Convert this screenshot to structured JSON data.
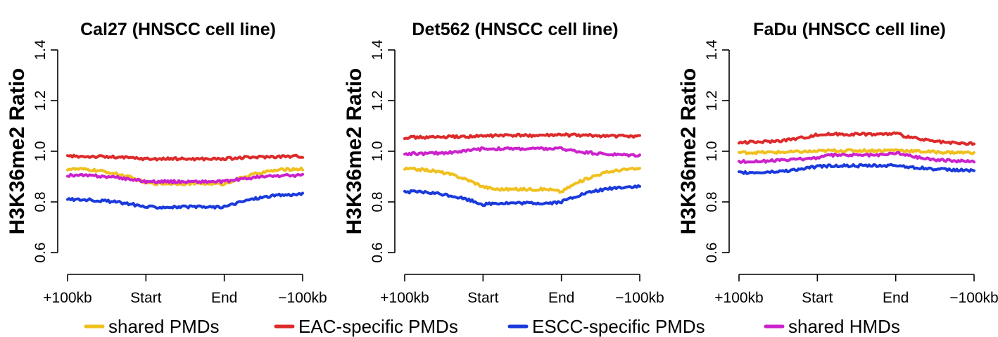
{
  "chart_data": [
    {
      "type": "line",
      "title": "Cal27 (HNSCC cell line)",
      "ylabel": "H3K36me2 Ratio",
      "ylim": [
        0.6,
        1.4
      ],
      "yticks": [
        "0.6",
        "0.8",
        "1.0",
        "1.2",
        "1.4"
      ],
      "xticks": [
        "+100kb",
        "Start",
        "End",
        "−100kb"
      ],
      "grid": false,
      "x": [
        0,
        0.33,
        0.67,
        1
      ],
      "series": [
        {
          "name": "shared PMDs",
          "color": "#f0c01e",
          "values": [
            0.93,
            0.875,
            0.87,
            0.93
          ]
        },
        {
          "name": "EAC-specific PMDs",
          "color": "#dd2a2a",
          "values": [
            0.98,
            0.97,
            0.97,
            0.98
          ]
        },
        {
          "name": "ESCC-specific PMDs",
          "color": "#1a3adb",
          "values": [
            0.81,
            0.78,
            0.78,
            0.83
          ]
        },
        {
          "name": "shared HMDs",
          "color": "#cc22cc",
          "values": [
            0.905,
            0.88,
            0.88,
            0.905
          ]
        }
      ]
    },
    {
      "type": "line",
      "title": "Det562 (HNSCC cell line)",
      "ylabel": "H3K36me2 Ratio",
      "ylim": [
        0.6,
        1.4
      ],
      "yticks": [
        "0.6",
        "0.8",
        "1.0",
        "1.2",
        "1.4"
      ],
      "xticks": [
        "+100kb",
        "Start",
        "End",
        "−100kb"
      ],
      "grid": false,
      "x": [
        0,
        0.33,
        0.67,
        1
      ],
      "series": [
        {
          "name": "shared PMDs",
          "color": "#f0c01e",
          "values": [
            0.93,
            0.86,
            0.84,
            0.93
          ]
        },
        {
          "name": "EAC-specific PMDs",
          "color": "#dd2a2a",
          "values": [
            1.055,
            1.06,
            1.065,
            1.06
          ]
        },
        {
          "name": "ESCC-specific PMDs",
          "color": "#1a3adb",
          "values": [
            0.84,
            0.79,
            0.8,
            0.86
          ]
        },
        {
          "name": "shared HMDs",
          "color": "#cc22cc",
          "values": [
            0.99,
            1.01,
            1.01,
            0.985
          ]
        }
      ]
    },
    {
      "type": "line",
      "title": "FaDu (HNSCC cell line)",
      "ylabel": "H3K36me2 Ratio",
      "ylim": [
        0.6,
        1.4
      ],
      "yticks": [
        "0.6",
        "0.8",
        "1.0",
        "1.2",
        "1.4"
      ],
      "xticks": [
        "+100kb",
        "Start",
        "End",
        "−100kb"
      ],
      "grid": false,
      "x": [
        0,
        0.33,
        0.67,
        1
      ],
      "series": [
        {
          "name": "shared PMDs",
          "color": "#f0c01e",
          "values": [
            0.995,
            1.0,
            1.005,
            0.995
          ]
        },
        {
          "name": "EAC-specific PMDs",
          "color": "#dd2a2a",
          "values": [
            1.035,
            1.065,
            1.07,
            1.03
          ]
        },
        {
          "name": "ESCC-specific PMDs",
          "color": "#1a3adb",
          "values": [
            0.915,
            0.94,
            0.945,
            0.925
          ]
        },
        {
          "name": "shared HMDs",
          "color": "#cc22cc",
          "values": [
            0.96,
            0.975,
            0.995,
            0.96
          ]
        }
      ]
    }
  ],
  "legend": {
    "placement": "bottom",
    "items": [
      {
        "label": "shared PMDs",
        "color": "#f0c01e"
      },
      {
        "label": "EAC-specific PMDs",
        "color": "#dd2a2a"
      },
      {
        "label": "ESCC-specific PMDs",
        "color": "#1a3adb"
      },
      {
        "label": "shared HMDs",
        "color": "#cc22cc"
      }
    ]
  }
}
